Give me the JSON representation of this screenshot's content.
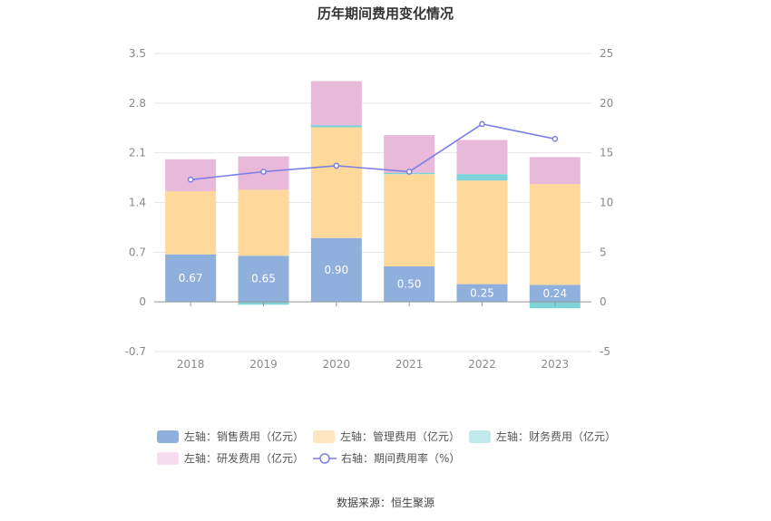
{
  "chart_data": {
    "type": "bar",
    "title": "历年期间费用变化情况",
    "categories": [
      "2018",
      "2019",
      "2020",
      "2021",
      "2022",
      "2023"
    ],
    "y_left": {
      "ticks": [
        "3.5",
        "2.8",
        "2.1",
        "1.4",
        "0.7",
        "0",
        "-0.7"
      ],
      "ylim": [
        -0.7,
        3.5
      ]
    },
    "y_right": {
      "ticks": [
        "25",
        "20",
        "15",
        "10",
        "5",
        "0",
        "-5"
      ],
      "ylim": [
        -5,
        25
      ]
    },
    "stacked": true,
    "series": [
      {
        "name": "左轴：销售费用（亿元）",
        "type": "bar",
        "axis": "left",
        "color": "#8fb0dc",
        "legend_color": "#8fb0dc",
        "values": [
          0.67,
          0.65,
          0.9,
          0.5,
          0.25,
          0.24
        ],
        "labels": [
          "0.67",
          "0.65",
          "0.90",
          "0.50",
          "0.25",
          "0.24"
        ]
      },
      {
        "name": "左轴：管理费用（亿元）",
        "type": "bar",
        "axis": "left",
        "color": "#ffd99b",
        "legend_color": "#ffe6c2",
        "values": [
          0.89,
          0.93,
          1.56,
          1.3,
          1.46,
          1.42
        ]
      },
      {
        "name": "左轴：财务费用（亿元）",
        "type": "bar",
        "axis": "left",
        "color": "#7dd3d8",
        "legend_color": "#bfe9eb",
        "values": [
          0.0,
          -0.04,
          0.03,
          0.02,
          0.09,
          -0.09
        ]
      },
      {
        "name": "左轴：研发费用（亿元）",
        "type": "bar",
        "axis": "left",
        "color": "#e8b9d9",
        "legend_color": "#f5dcee",
        "values": [
          0.45,
          0.47,
          0.62,
          0.53,
          0.48,
          0.38
        ]
      },
      {
        "name": "右轴：期间费用率（%）",
        "type": "line",
        "axis": "right",
        "color": "#7b7fe6",
        "values": [
          12.3,
          13.1,
          13.7,
          13.1,
          17.9,
          16.4
        ]
      }
    ],
    "grid": true,
    "legend_position": "bottom"
  },
  "source": "数据来源：恒生聚源"
}
